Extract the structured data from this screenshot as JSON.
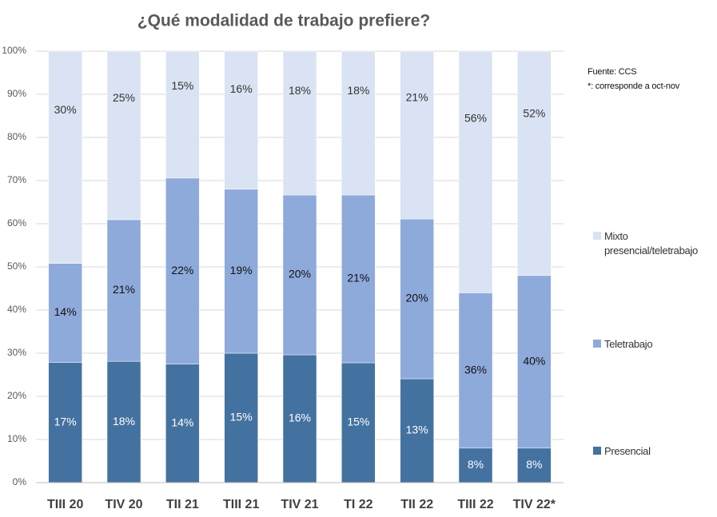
{
  "chart_data": {
    "type": "bar",
    "stacking": "percent",
    "title": "¿Qué modalidad de trabajo prefiere?",
    "annotations": [
      "Fuente:  CCS",
      "*: corresponde a oct-nov"
    ],
    "categories": [
      "TIII 20",
      "TIV 20",
      "TII 21",
      "TIII 21",
      "TIV 21",
      "TI 22",
      "TII 22",
      "TIII 22",
      "TIV 22*"
    ],
    "series": [
      {
        "name": "Presencial",
        "color": "#4472a0",
        "values": [
          17,
          18,
          14,
          15,
          16,
          15,
          13,
          8,
          8
        ],
        "value_labels": [
          "17%",
          "18%",
          "14%",
          "15%",
          "16%",
          "15%",
          "13%",
          "8%",
          "8%"
        ]
      },
      {
        "name": "Teletrabajo",
        "color": "#8eaadb",
        "values": [
          14,
          21,
          22,
          19,
          20,
          21,
          20,
          36,
          40
        ],
        "value_labels": [
          "14%",
          "21%",
          "22%",
          "19%",
          "20%",
          "21%",
          "20%",
          "36%",
          "40%"
        ]
      },
      {
        "name": "Mixto presencial/teletrabajo",
        "color": "#dae3f3",
        "values": [
          30,
          25,
          15,
          16,
          18,
          18,
          21,
          56,
          52
        ],
        "value_labels": [
          "30%",
          "25%",
          "15%",
          "16%",
          "18%",
          "18%",
          "21%",
          "56%",
          "52%"
        ]
      }
    ],
    "ylim": [
      0,
      100
    ],
    "yticks": [
      {
        "value": 0,
        "label": "0%"
      },
      {
        "value": 10,
        "label": "10%"
      },
      {
        "value": 20,
        "label": "20%"
      },
      {
        "value": 30,
        "label": "30%"
      },
      {
        "value": 40,
        "label": "40%"
      },
      {
        "value": 50,
        "label": "50%"
      },
      {
        "value": 60,
        "label": "60%"
      },
      {
        "value": 70,
        "label": "70%"
      },
      {
        "value": 80,
        "label": "80%"
      },
      {
        "value": 90,
        "label": "90%"
      },
      {
        "value": 100,
        "label": "100%"
      }
    ],
    "grid": true,
    "legend": "right"
  }
}
